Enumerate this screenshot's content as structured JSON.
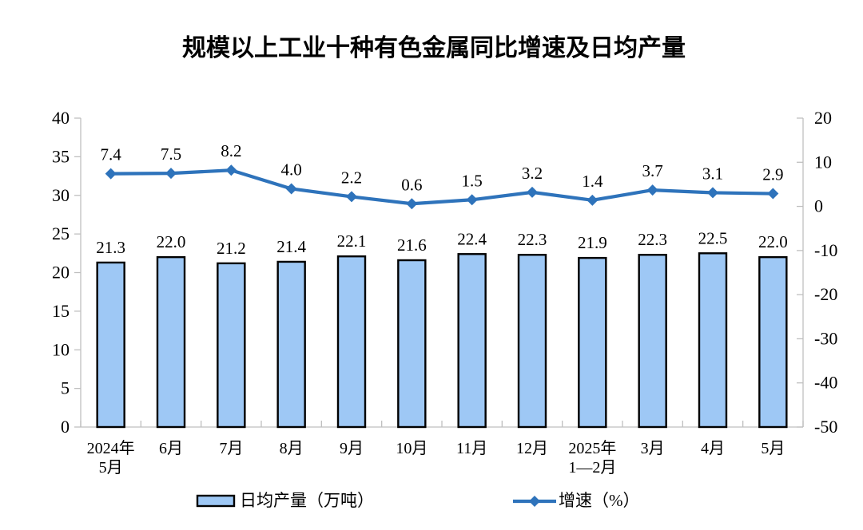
{
  "title": "规模以上工业十种有色金属同比增速及日均产量",
  "chart_data": {
    "type": "combo-bar-line",
    "categories": [
      "2024年\n5月",
      "6月",
      "7月",
      "8月",
      "9月",
      "10月",
      "11月",
      "12月",
      "2025年\n1—2月",
      "3月",
      "4月",
      "5月"
    ],
    "series": [
      {
        "name": "日均产量（万吨）",
        "type": "bar",
        "axis": "left",
        "values": [
          21.3,
          22.0,
          21.2,
          21.4,
          22.1,
          21.6,
          22.4,
          22.3,
          21.9,
          22.3,
          22.5,
          22.0
        ],
        "labels": [
          "21.3",
          "22.0",
          "21.2",
          "21.4",
          "22.1",
          "21.6",
          "22.4",
          "22.3",
          "21.9",
          "22.3",
          "22.5",
          "22.0"
        ],
        "fill": "#9EC8F5",
        "stroke": "#000000"
      },
      {
        "name": "增速（%）",
        "type": "line",
        "axis": "right",
        "values": [
          7.4,
          7.5,
          8.2,
          4.0,
          2.2,
          0.6,
          1.5,
          3.2,
          1.4,
          3.7,
          3.1,
          2.9
        ],
        "labels": [
          "7.4",
          "7.5",
          "8.2",
          "4.0",
          "2.2",
          "0.6",
          "1.5",
          "3.2",
          "1.4",
          "3.7",
          "3.1",
          "2.9"
        ],
        "color": "#2E73BB",
        "marker": "diamond"
      }
    ],
    "left_axis": {
      "min": 0,
      "max": 40,
      "step": 5,
      "ticks": [
        "0",
        "5",
        "10",
        "15",
        "20",
        "25",
        "30",
        "35",
        "40"
      ]
    },
    "right_axis": {
      "min": -50,
      "max": 20,
      "step": 10,
      "ticks": [
        "-50",
        "-40",
        "-30",
        "-20",
        "-10",
        "0",
        "10",
        "20"
      ]
    },
    "grid": false,
    "legend_position": "bottom",
    "axis_color": "#BFBFBF",
    "text_color": "#000000",
    "background": "#FFFFFF"
  }
}
